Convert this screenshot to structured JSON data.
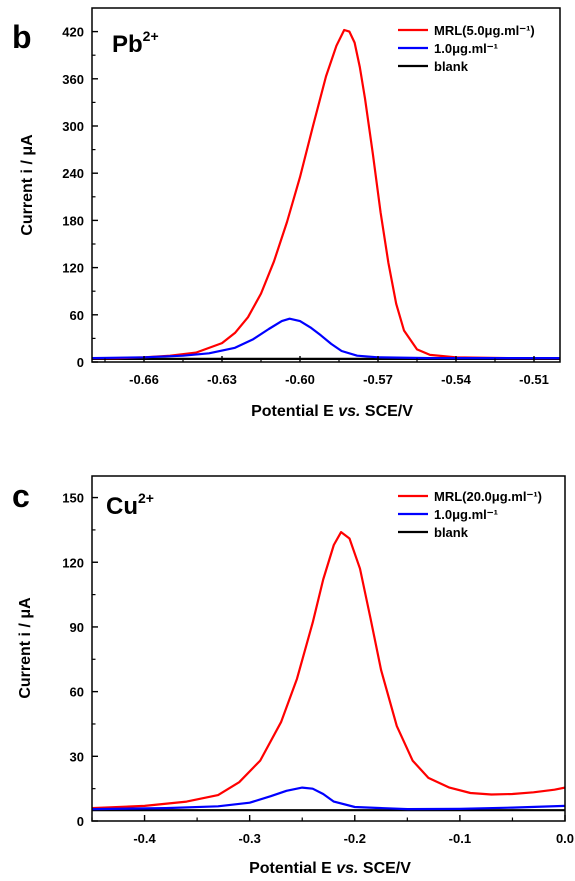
{
  "chart_data": [
    {
      "type": "line",
      "panel_letter": "b",
      "ion": "Pb",
      "ion_charge": "2+",
      "xlabel_parts": [
        "Potential E ",
        "vs.",
        " SCE/V"
      ],
      "ylabel": "Current i / μA",
      "xlim": [
        -0.68,
        -0.5
      ],
      "ylim": [
        0,
        450
      ],
      "xticks": [
        -0.66,
        -0.63,
        -0.6,
        -0.57,
        -0.54,
        -0.51
      ],
      "xtick_labels": [
        "-0.66",
        "-0.63",
        "-0.60",
        "-0.57",
        "-0.54",
        "-0.51"
      ],
      "yticks": [
        0,
        60,
        120,
        180,
        240,
        300,
        360,
        420
      ],
      "ytick_labels": [
        "0",
        "60",
        "120",
        "180",
        "240",
        "300",
        "360",
        "420"
      ],
      "legend_position": "top-right",
      "series": [
        {
          "name": "MRL(5.0μg.ml⁻¹)",
          "color": "#ff0000",
          "x": [
            -0.68,
            -0.67,
            -0.66,
            -0.65,
            -0.64,
            -0.63,
            -0.625,
            -0.62,
            -0.615,
            -0.61,
            -0.605,
            -0.6,
            -0.595,
            -0.59,
            -0.586,
            -0.583,
            -0.581,
            -0.579,
            -0.577,
            -0.575,
            -0.572,
            -0.569,
            -0.566,
            -0.563,
            -0.56,
            -0.555,
            -0.55,
            -0.54,
            -0.52,
            -0.5
          ],
          "y": [
            5,
            5,
            6,
            8,
            12,
            24,
            37,
            57,
            87,
            128,
            178,
            235,
            300,
            363,
            402,
            422,
            420,
            406,
            375,
            335,
            265,
            190,
            126,
            74,
            40,
            16,
            9,
            6,
            5,
            5
          ]
        },
        {
          "name": "1.0μg.ml⁻¹",
          "color": "#0000ff",
          "x": [
            -0.68,
            -0.66,
            -0.645,
            -0.635,
            -0.625,
            -0.618,
            -0.612,
            -0.607,
            -0.604,
            -0.6,
            -0.596,
            -0.592,
            -0.588,
            -0.584,
            -0.578,
            -0.57,
            -0.55,
            -0.5
          ],
          "y": [
            5,
            6,
            8,
            11,
            18,
            29,
            42,
            52,
            55,
            52,
            44,
            34,
            23,
            14,
            8,
            6,
            5,
            5
          ]
        },
        {
          "name": "blank",
          "color": "#000000",
          "x": [
            -0.68,
            -0.5
          ],
          "y": [
            4,
            4
          ]
        }
      ]
    },
    {
      "type": "line",
      "panel_letter": "c",
      "ion": "Cu",
      "ion_charge": "2+",
      "xlabel_parts": [
        "Potential E ",
        "vs.",
        " SCE/V"
      ],
      "ylabel": "Current i / μA",
      "xlim": [
        -0.45,
        0.0
      ],
      "ylim": [
        0,
        160
      ],
      "xticks": [
        -0.4,
        -0.3,
        -0.2,
        -0.1,
        0.0
      ],
      "xtick_labels": [
        "-0.4",
        "-0.3",
        "-0.2",
        "-0.1",
        "0.0"
      ],
      "yticks": [
        0,
        30,
        60,
        90,
        120,
        150
      ],
      "ytick_labels": [
        "0",
        "30",
        "60",
        "90",
        "120",
        "150"
      ],
      "legend_position": "top-right",
      "series": [
        {
          "name": "MRL(20.0μg.ml⁻¹)",
          "color": "#ff0000",
          "x": [
            -0.45,
            -0.4,
            -0.36,
            -0.33,
            -0.31,
            -0.29,
            -0.27,
            -0.255,
            -0.24,
            -0.23,
            -0.22,
            -0.213,
            -0.205,
            -0.195,
            -0.185,
            -0.175,
            -0.16,
            -0.145,
            -0.13,
            -0.11,
            -0.09,
            -0.07,
            -0.05,
            -0.03,
            -0.01,
            0.0
          ],
          "y": [
            6,
            7,
            9,
            12,
            18,
            28,
            46,
            66,
            92,
            112,
            128,
            134,
            131,
            117,
            94,
            70,
            44,
            28,
            20,
            15.5,
            13,
            12.3,
            12.5,
            13.3,
            14.5,
            15.5
          ]
        },
        {
          "name": "1.0μg.ml⁻¹",
          "color": "#0000ff",
          "x": [
            -0.45,
            -0.38,
            -0.33,
            -0.3,
            -0.28,
            -0.265,
            -0.25,
            -0.24,
            -0.23,
            -0.22,
            -0.2,
            -0.15,
            -0.1,
            -0.05,
            0.0
          ],
          "y": [
            5.5,
            6,
            6.8,
            8.5,
            11.5,
            14,
            15.5,
            15,
            12.5,
            9,
            6.5,
            5.5,
            5.6,
            6.2,
            7
          ]
        },
        {
          "name": "blank",
          "color": "#000000",
          "x": [
            -0.45,
            0.0
          ],
          "y": [
            5,
            5
          ]
        }
      ]
    }
  ]
}
